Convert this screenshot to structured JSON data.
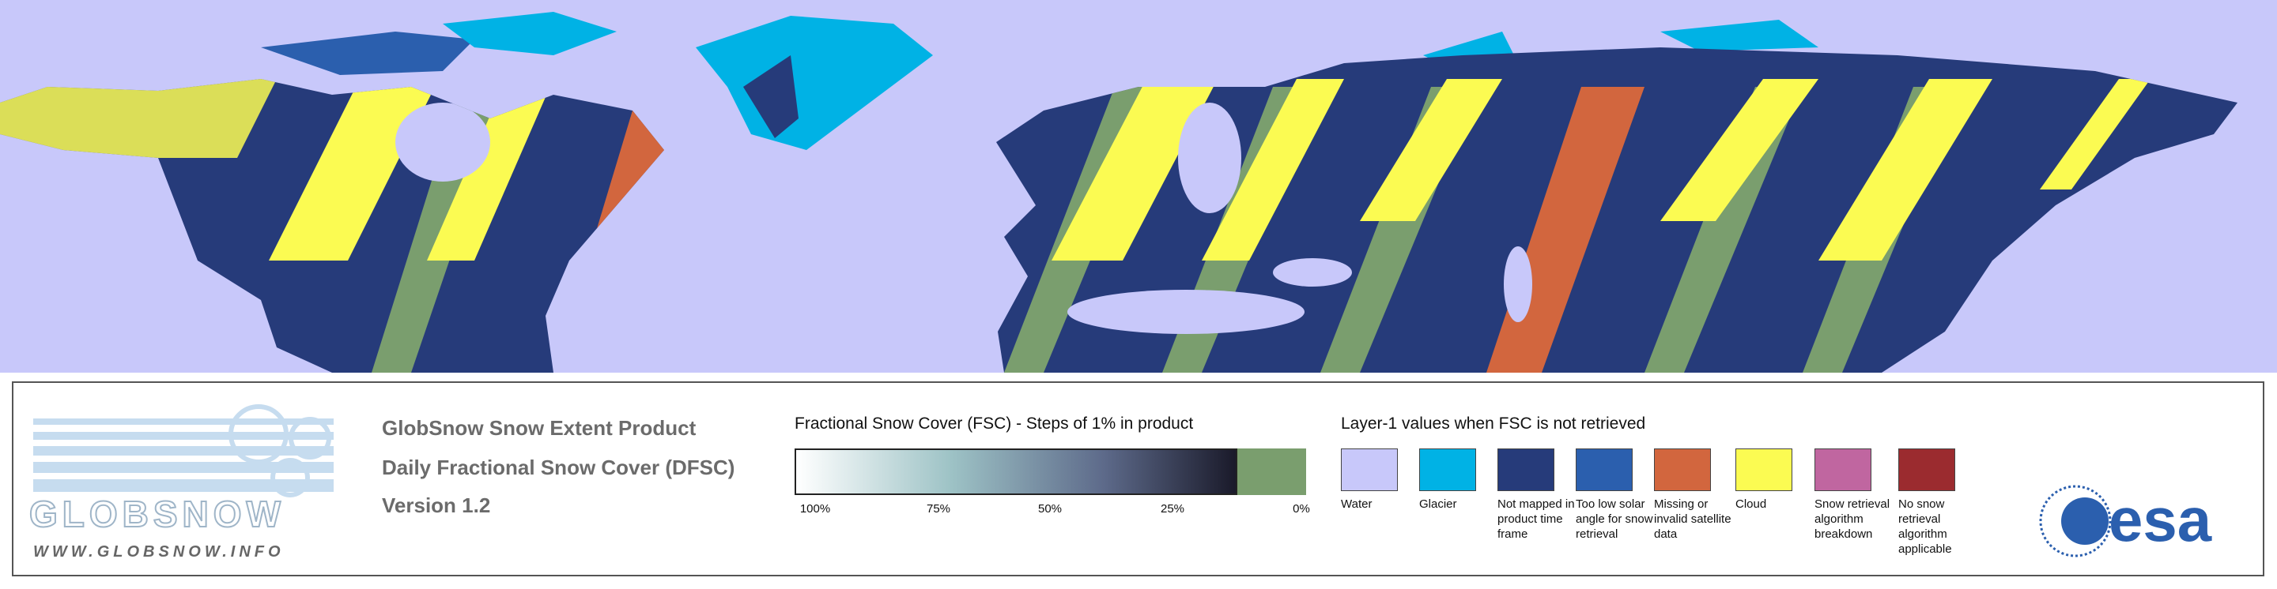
{
  "logo": {
    "name": "GLOBSNOW",
    "url": "WWW.GLOBSNOW.INFO",
    "agency": "esa"
  },
  "product": {
    "lines": [
      "GlobSnow Snow Extent Product",
      "Daily Fractional Snow Cover (DFSC)",
      "Version 1.2"
    ]
  },
  "fsc_legend": {
    "title": "Fractional Snow Cover (FSC) - Steps of 1% in product",
    "labels": [
      "100%",
      "75%",
      "50%",
      "25%",
      "0%"
    ]
  },
  "layer1_legend": {
    "title": "Layer-1 values when FSC is not retrieved",
    "classes": [
      {
        "label": "Water",
        "color": "#c8c8fa"
      },
      {
        "label": "Glacier",
        "color": "#00b2e5"
      },
      {
        "label": "Not mapped in product time frame",
        "color": "#263b7a"
      },
      {
        "label": "Too low solar angle for snow retrieval",
        "color": "#2b5fae"
      },
      {
        "label": "Missing or invalid satellite data",
        "color": "#d2663e"
      },
      {
        "label": "Cloud",
        "color": "#fbfb52"
      },
      {
        "label": "Snow retrieval algorithm breakdown",
        "color": "#c066a0"
      },
      {
        "label": "No snow retrieval algorithm applicable",
        "color": "#9b2b2f"
      }
    ]
  }
}
